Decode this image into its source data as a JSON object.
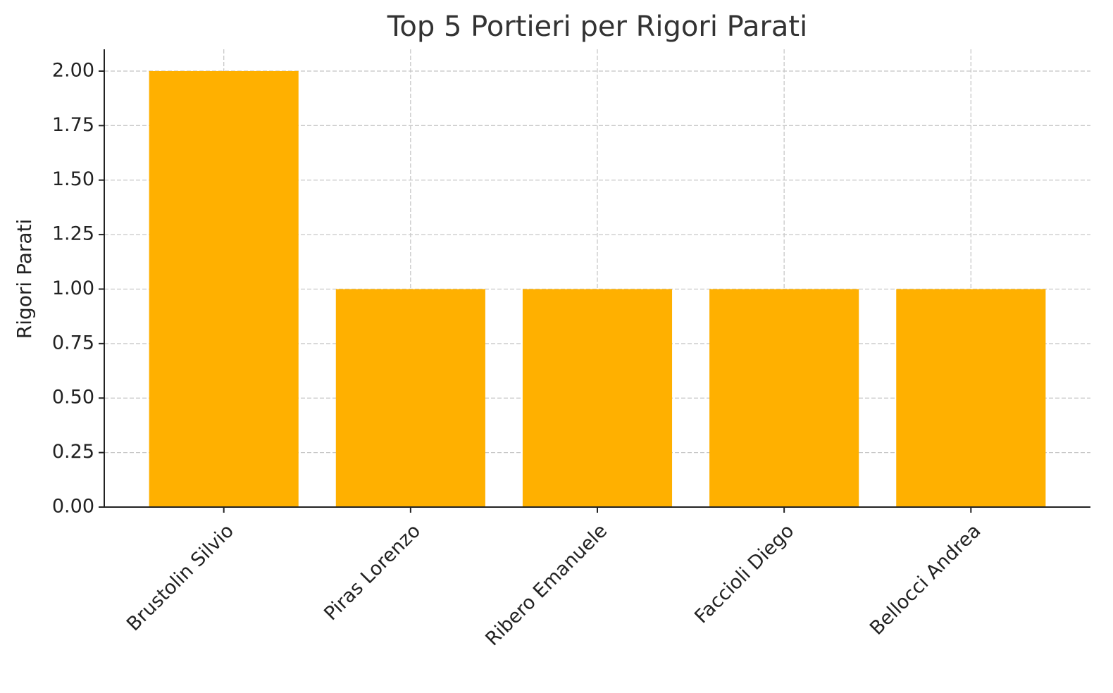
{
  "chart_data": {
    "type": "bar",
    "title": "Top 5 Portieri per Rigori Parati",
    "y_label": "Rigori Parati",
    "categories": [
      "Brustolin Silvio",
      "Piras Lorenzo",
      "Ribero Emanuele",
      "Faccioli Diego",
      "Bellocci Andrea"
    ],
    "values": [
      2,
      1,
      1,
      1,
      1
    ],
    "color": "#ffb000",
    "ylim": [
      0,
      2.1
    ],
    "yticks": [
      {
        "value": 0,
        "label": "0.00"
      },
      {
        "value": 0.25,
        "label": "0.25"
      },
      {
        "value": 0.5,
        "label": "0.50"
      },
      {
        "value": 0.75,
        "label": "0.75"
      },
      {
        "value": 1,
        "label": "1.00"
      },
      {
        "value": 1.25,
        "label": "1.25"
      },
      {
        "value": 1.5,
        "label": "1.50"
      },
      {
        "value": 1.75,
        "label": "1.75"
      },
      {
        "value": 2,
        "label": "2.00"
      }
    ],
    "grid": true
  }
}
